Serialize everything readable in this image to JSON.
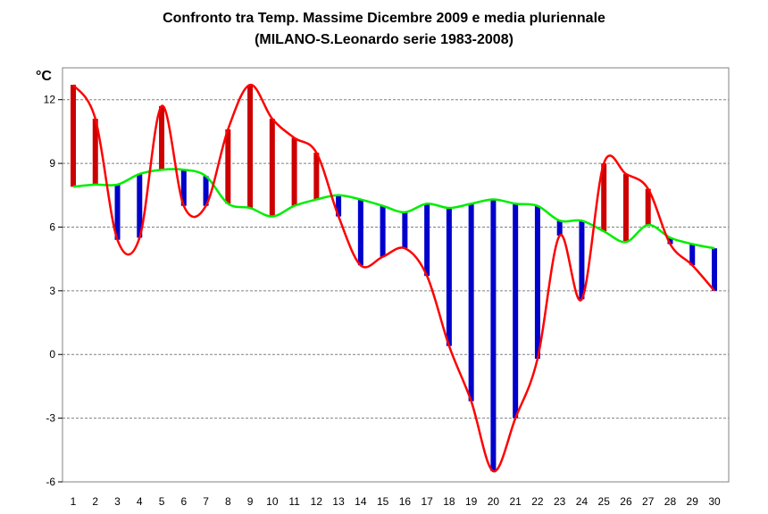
{
  "chart_data": {
    "type": "line",
    "title": "Confronto tra Temp. Massime Dicembre 2009 e media pluriennale",
    "subtitle": "(MILANO-S.Leonardo serie 1983-2008)",
    "ylabel": "°C",
    "xlabel": "",
    "ylim": [
      -6,
      13.5
    ],
    "yticks": [
      -6,
      -3,
      0,
      3,
      6,
      9,
      12
    ],
    "categories": [
      "1",
      "2",
      "3",
      "4",
      "5",
      "6",
      "7",
      "8",
      "9",
      "10",
      "11",
      "12",
      "13",
      "14",
      "15",
      "16",
      "17",
      "18",
      "19",
      "20",
      "21",
      "22",
      "23",
      "24",
      "25",
      "26",
      "27",
      "28",
      "29",
      "30"
    ],
    "series": [
      {
        "values": [
          12.7,
          11.1,
          5.4,
          5.5,
          11.7,
          7.0,
          7.0,
          10.6,
          12.7,
          11.1,
          10.2,
          9.5,
          6.5,
          4.2,
          4.6,
          5.0,
          3.7,
          0.4,
          -2.2,
          -5.5,
          -3.0,
          -0.2,
          5.6,
          2.6,
          9.0,
          8.5,
          7.8,
          5.2,
          4.2,
          3.0
        ]
      },
      {
        "values": [
          7.9,
          8.0,
          8.0,
          8.5,
          8.7,
          8.7,
          8.4,
          7.1,
          6.9,
          6.5,
          7.0,
          7.3,
          7.5,
          7.3,
          7.0,
          6.7,
          7.1,
          6.9,
          7.1,
          7.3,
          7.1,
          7.0,
          6.3,
          6.3,
          5.8,
          5.3,
          6.1,
          5.5,
          5.2,
          5.0
        ]
      }
    ],
    "grid": true,
    "colors": {
      "above": "#cc0000",
      "below": "#0000cc",
      "daily_line": "#ff0000",
      "mean_line": "#00ee00",
      "grid": "#808080"
    }
  }
}
